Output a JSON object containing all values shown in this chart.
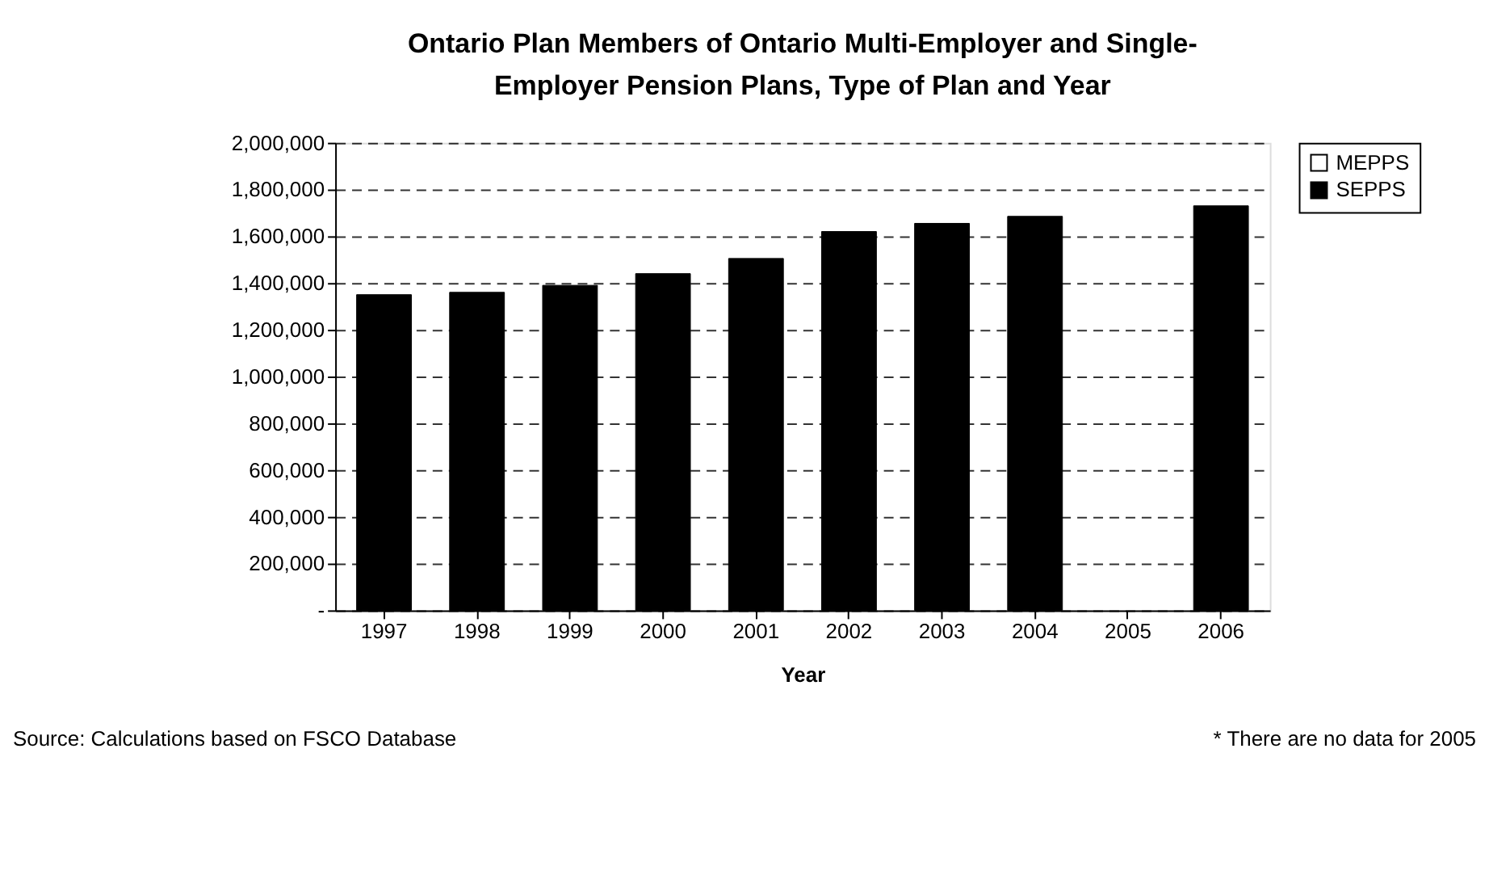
{
  "chart_data": {
    "type": "bar",
    "title": "Ontario Plan Members of Ontario Multi-Employer and Single-Employer Pension Plans, Type of Plan and Year",
    "xlabel": "Year",
    "categories": [
      "1997",
      "1998",
      "1999",
      "2000",
      "2001",
      "2002",
      "2003",
      "2004",
      "2005",
      "2006"
    ],
    "stacked": true,
    "series": [
      {
        "name": "SEPPS",
        "color": "#000000",
        "values": [
          1350000,
          1360000,
          1390000,
          1440000,
          1505000,
          1620000,
          1655000,
          1685000,
          null,
          1730000
        ]
      },
      {
        "name": "MEPPS",
        "color": "#ffffff",
        "values": [
          null,
          null,
          null,
          null,
          null,
          null,
          null,
          null,
          null,
          null
        ]
      }
    ],
    "ylim": [
      0,
      2000000
    ],
    "yticks": [
      {
        "value": 0,
        "label": "-"
      },
      {
        "value": 200000,
        "label": "200,000"
      },
      {
        "value": 400000,
        "label": "400,000"
      },
      {
        "value": 600000,
        "label": "600,000"
      },
      {
        "value": 800000,
        "label": "800,000"
      },
      {
        "value": 1000000,
        "label": "1,000,000"
      },
      {
        "value": 1200000,
        "label": "1,200,000"
      },
      {
        "value": 1400000,
        "label": "1,400,000"
      },
      {
        "value": 1600000,
        "label": "1,600,000"
      },
      {
        "value": 1800000,
        "label": "1,800,000"
      },
      {
        "value": 2000000,
        "label": "2,000,000"
      }
    ],
    "grid": "y",
    "legend": "right",
    "annotations": [
      "Source: Calculations based on FSCO Database",
      "* There are no data for 2005"
    ]
  }
}
